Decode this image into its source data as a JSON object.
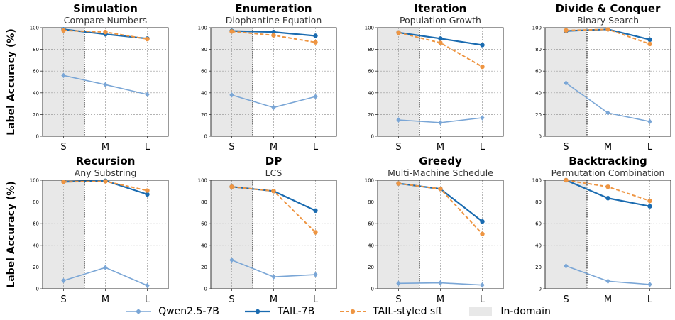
{
  "y_axis_label": "Label Accuracy (%)",
  "legend": [
    {
      "label": "Qwen2.5-7B",
      "key": "qwen"
    },
    {
      "label": "TAIL-7B",
      "key": "tail"
    },
    {
      "label": "TAIL-styled sft",
      "key": "sft"
    },
    {
      "label": "In-domain",
      "key": "domain"
    }
  ],
  "colors": {
    "qwen": "#7aa6d6",
    "tail": "#1a6bb0",
    "sft": "#ee9542",
    "domain": "#e8e8e8"
  },
  "chart_data": [
    {
      "type": "line",
      "title": "Simulation",
      "subtitle": "Compare Numbers",
      "categories": [
        "S",
        "M",
        "L"
      ],
      "ylim": [
        0,
        100
      ],
      "yticks": [
        0,
        20,
        40,
        60,
        80,
        100
      ],
      "in_domain": [
        "S"
      ],
      "series": [
        {
          "name": "Qwen2.5-7B",
          "values": [
            56,
            47.5,
            38.5
          ]
        },
        {
          "name": "TAIL-7B",
          "values": [
            98.5,
            94,
            90
          ]
        },
        {
          "name": "TAIL-styled sft",
          "values": [
            97.5,
            96,
            89.5
          ]
        }
      ]
    },
    {
      "type": "line",
      "title": "Enumeration",
      "subtitle": "Diophantine Equation",
      "categories": [
        "S",
        "M",
        "L"
      ],
      "ylim": [
        0,
        100
      ],
      "yticks": [
        0,
        20,
        40,
        60,
        80,
        100
      ],
      "in_domain": [
        "S"
      ],
      "series": [
        {
          "name": "Qwen2.5-7B",
          "values": [
            38,
            26.5,
            36.5
          ]
        },
        {
          "name": "TAIL-7B",
          "values": [
            97,
            96,
            92.5
          ]
        },
        {
          "name": "TAIL-styled sft",
          "values": [
            96.5,
            93,
            86.5
          ]
        }
      ]
    },
    {
      "type": "line",
      "title": "Iteration",
      "subtitle": "Population Growth",
      "categories": [
        "S",
        "M",
        "L"
      ],
      "ylim": [
        0,
        100
      ],
      "yticks": [
        0,
        20,
        40,
        60,
        80,
        100
      ],
      "in_domain": [
        "S"
      ],
      "series": [
        {
          "name": "Qwen2.5-7B",
          "values": [
            15,
            12.5,
            17
          ]
        },
        {
          "name": "TAIL-7B",
          "values": [
            95.5,
            90,
            84
          ]
        },
        {
          "name": "TAIL-styled sft",
          "values": [
            95.5,
            86,
            64
          ]
        }
      ]
    },
    {
      "type": "line",
      "title": "Divide & Conquer",
      "subtitle": "Binary Search",
      "categories": [
        "S",
        "M",
        "L"
      ],
      "ylim": [
        0,
        100
      ],
      "yticks": [
        0,
        20,
        40,
        60,
        80,
        100
      ],
      "in_domain": [
        "S"
      ],
      "series": [
        {
          "name": "Qwen2.5-7B",
          "values": [
            49,
            21.5,
            13.5
          ]
        },
        {
          "name": "TAIL-7B",
          "values": [
            97,
            98.5,
            89
          ]
        },
        {
          "name": "TAIL-styled sft",
          "values": [
            97.5,
            98.5,
            85
          ]
        }
      ]
    },
    {
      "type": "line",
      "title": "Recursion",
      "subtitle": "Any Substring",
      "categories": [
        "S",
        "M",
        "L"
      ],
      "ylim": [
        0,
        100
      ],
      "yticks": [
        0,
        20,
        40,
        60,
        80,
        100
      ],
      "in_domain": [
        "S"
      ],
      "series": [
        {
          "name": "Qwen2.5-7B",
          "values": [
            7.5,
            19.5,
            3
          ]
        },
        {
          "name": "TAIL-7B",
          "values": [
            98.5,
            99.5,
            87
          ]
        },
        {
          "name": "TAIL-styled sft",
          "values": [
            98.5,
            99,
            90.5
          ]
        }
      ]
    },
    {
      "type": "line",
      "title": "DP",
      "subtitle": "LCS",
      "categories": [
        "S",
        "M",
        "L"
      ],
      "ylim": [
        0,
        100
      ],
      "yticks": [
        0,
        20,
        40,
        60,
        80,
        100
      ],
      "in_domain": [
        "S"
      ],
      "series": [
        {
          "name": "Qwen2.5-7B",
          "values": [
            26.5,
            11,
            13
          ]
        },
        {
          "name": "TAIL-7B",
          "values": [
            94,
            90,
            72
          ]
        },
        {
          "name": "TAIL-styled sft",
          "values": [
            94,
            90,
            52
          ]
        }
      ]
    },
    {
      "type": "line",
      "title": "Greedy",
      "subtitle": "Multi-Machine Schedule",
      "categories": [
        "S",
        "M",
        "L"
      ],
      "ylim": [
        0,
        100
      ],
      "yticks": [
        0,
        20,
        40,
        60,
        80,
        100
      ],
      "in_domain": [
        "S"
      ],
      "series": [
        {
          "name": "Qwen2.5-7B",
          "values": [
            5,
            5.5,
            3.5
          ]
        },
        {
          "name": "TAIL-7B",
          "values": [
            97,
            92,
            62
          ]
        },
        {
          "name": "TAIL-styled sft",
          "values": [
            97,
            92,
            50.5
          ]
        }
      ]
    },
    {
      "type": "line",
      "title": "Backtracking",
      "subtitle": "Permutation Combination",
      "categories": [
        "S",
        "M",
        "L"
      ],
      "ylim": [
        0,
        100
      ],
      "yticks": [
        0,
        20,
        40,
        60,
        80,
        100
      ],
      "in_domain": [
        "S"
      ],
      "series": [
        {
          "name": "Qwen2.5-7B",
          "values": [
            21,
            7,
            4
          ]
        },
        {
          "name": "TAIL-7B",
          "values": [
            100,
            83.5,
            76
          ]
        },
        {
          "name": "TAIL-styled sft",
          "values": [
            100,
            94,
            81
          ]
        }
      ]
    }
  ]
}
